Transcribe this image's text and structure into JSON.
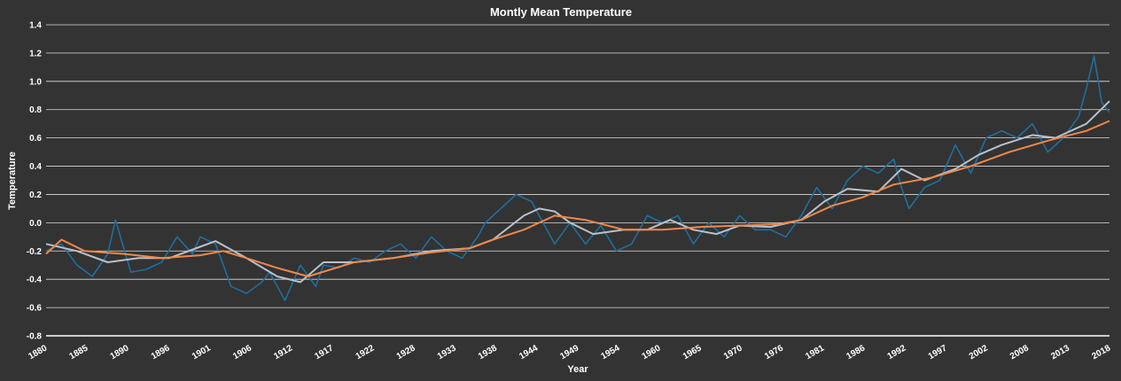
{
  "chart_data": {
    "type": "line",
    "title": "Montly Mean Temperature",
    "xlabel": "Year",
    "ylabel": "Temperature",
    "xlim": [
      1880,
      2018
    ],
    "ylim": [
      -0.8,
      1.4
    ],
    "grid": "horizontal",
    "x_ticks": [
      "1880",
      "1885",
      "1890",
      "1896",
      "1901",
      "1906",
      "1912",
      "1917",
      "1922",
      "1928",
      "1933",
      "1938",
      "1944",
      "1949",
      "1954",
      "1960",
      "1965",
      "1970",
      "1976",
      "1981",
      "1986",
      "1992",
      "1997",
      "2002",
      "2008",
      "2013",
      "2018"
    ],
    "y_ticks": [
      "-0.8",
      "-0.6",
      "-0.4",
      "-0.2",
      "0.0",
      "0.2",
      "0.4",
      "0.6",
      "0.8",
      "1.0",
      "1.2",
      "1.4"
    ],
    "series": [
      {
        "key": "monthly_smoothed",
        "color": "#1f6f9f",
        "x": [
          1880,
          1882,
          1884,
          1886,
          1888,
          1889,
          1891,
          1893,
          1895,
          1897,
          1899,
          1900,
          1902,
          1904,
          1906,
          1908,
          1909,
          1911,
          1913,
          1915,
          1916,
          1918,
          1920,
          1922,
          1924,
          1926,
          1928,
          1930,
          1932,
          1934,
          1936,
          1937,
          1939,
          1941,
          1943,
          1944,
          1946,
          1948,
          1950,
          1952,
          1954,
          1956,
          1958,
          1960,
          1962,
          1964,
          1966,
          1968,
          1970,
          1972,
          1974,
          1976,
          1978,
          1980,
          1982,
          1984,
          1986,
          1988,
          1990,
          1991,
          1992,
          1994,
          1996,
          1998,
          2000,
          2002,
          2004,
          2006,
          2008,
          2010,
          2012,
          2014,
          2015,
          2016,
          2017,
          2018
        ],
        "y": [
          -0.2,
          -0.15,
          -0.3,
          -0.38,
          -0.22,
          0.02,
          -0.35,
          -0.33,
          -0.28,
          -0.1,
          -0.22,
          -0.1,
          -0.15,
          -0.45,
          -0.5,
          -0.42,
          -0.35,
          -0.55,
          -0.3,
          -0.45,
          -0.3,
          -0.32,
          -0.25,
          -0.28,
          -0.2,
          -0.15,
          -0.25,
          -0.1,
          -0.2,
          -0.25,
          -0.1,
          0.0,
          0.1,
          0.2,
          0.15,
          0.05,
          -0.15,
          0.0,
          -0.15,
          -0.02,
          -0.2,
          -0.15,
          0.05,
          0.0,
          0.05,
          -0.15,
          0.0,
          -0.1,
          0.05,
          -0.05,
          -0.05,
          -0.1,
          0.05,
          0.25,
          0.1,
          0.3,
          0.4,
          0.35,
          0.45,
          0.25,
          0.1,
          0.25,
          0.3,
          0.55,
          0.35,
          0.6,
          0.65,
          0.6,
          0.7,
          0.5,
          0.6,
          0.75,
          0.95,
          1.18,
          0.85,
          0.78
        ]
      },
      {
        "key": "moving_average_gray",
        "color": "#b8c2cc",
        "x": [
          1880,
          1884,
          1888,
          1892,
          1896,
          1900,
          1902,
          1906,
          1910,
          1913,
          1916,
          1920,
          1925,
          1930,
          1935,
          1938,
          1942,
          1944,
          1946,
          1948,
          1951,
          1955,
          1958,
          1961,
          1964,
          1967,
          1970,
          1974,
          1978,
          1981,
          1984,
          1988,
          1991,
          1994,
          1998,
          2001,
          2004,
          2008,
          2011,
          2015,
          2018
        ],
        "y": [
          -0.15,
          -0.2,
          -0.28,
          -0.25,
          -0.25,
          -0.17,
          -0.13,
          -0.25,
          -0.38,
          -0.42,
          -0.28,
          -0.28,
          -0.25,
          -0.2,
          -0.18,
          -0.12,
          0.05,
          0.1,
          0.08,
          0.0,
          -0.08,
          -0.05,
          -0.05,
          0.02,
          -0.05,
          -0.08,
          -0.02,
          -0.03,
          0.02,
          0.15,
          0.24,
          0.22,
          0.38,
          0.3,
          0.38,
          0.48,
          0.55,
          0.62,
          0.6,
          0.7,
          0.86
        ]
      },
      {
        "key": "moving_average_orange",
        "color": "#f0884a",
        "x": [
          1880,
          1882,
          1885,
          1890,
          1895,
          1900,
          1903,
          1906,
          1910,
          1914,
          1917,
          1920,
          1925,
          1930,
          1935,
          1938,
          1942,
          1946,
          1950,
          1955,
          1960,
          1965,
          1970,
          1975,
          1978,
          1982,
          1986,
          1990,
          1995,
          2000,
          2005,
          2010,
          2015,
          2018
        ],
        "y": [
          -0.22,
          -0.12,
          -0.2,
          -0.22,
          -0.25,
          -0.23,
          -0.2,
          -0.25,
          -0.32,
          -0.38,
          -0.33,
          -0.28,
          -0.25,
          -0.21,
          -0.18,
          -0.12,
          -0.05,
          0.05,
          0.02,
          -0.05,
          -0.05,
          -0.03,
          -0.02,
          -0.01,
          0.02,
          0.12,
          0.18,
          0.27,
          0.32,
          0.4,
          0.5,
          0.58,
          0.65,
          0.72
        ]
      }
    ]
  }
}
